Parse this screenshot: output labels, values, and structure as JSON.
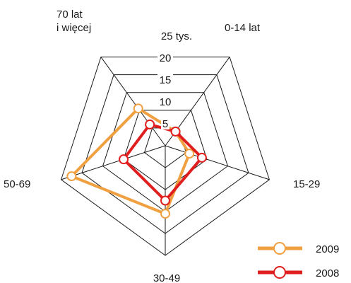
{
  "chart_data": {
    "type": "radar",
    "categories": [
      "0-14 lat",
      "15-29",
      "30-49",
      "50-69",
      "70 lat\ni więcej"
    ],
    "tick_labels": [
      "5",
      "10",
      "15",
      "20",
      "25 tys."
    ],
    "ticks": [
      5,
      10,
      15,
      20,
      25
    ],
    "rmax": 25,
    "grid": true,
    "legend_position": "bottom-right",
    "series": [
      {
        "name": "2009",
        "color": "#f0a040",
        "values": [
          4.0,
          5.8,
          15.5,
          22.5,
          10.5
        ]
      },
      {
        "name": "2008",
        "color": "#e01e1e",
        "values": [
          4.0,
          8.8,
          12.5,
          10.0,
          6.0
        ]
      }
    ]
  }
}
